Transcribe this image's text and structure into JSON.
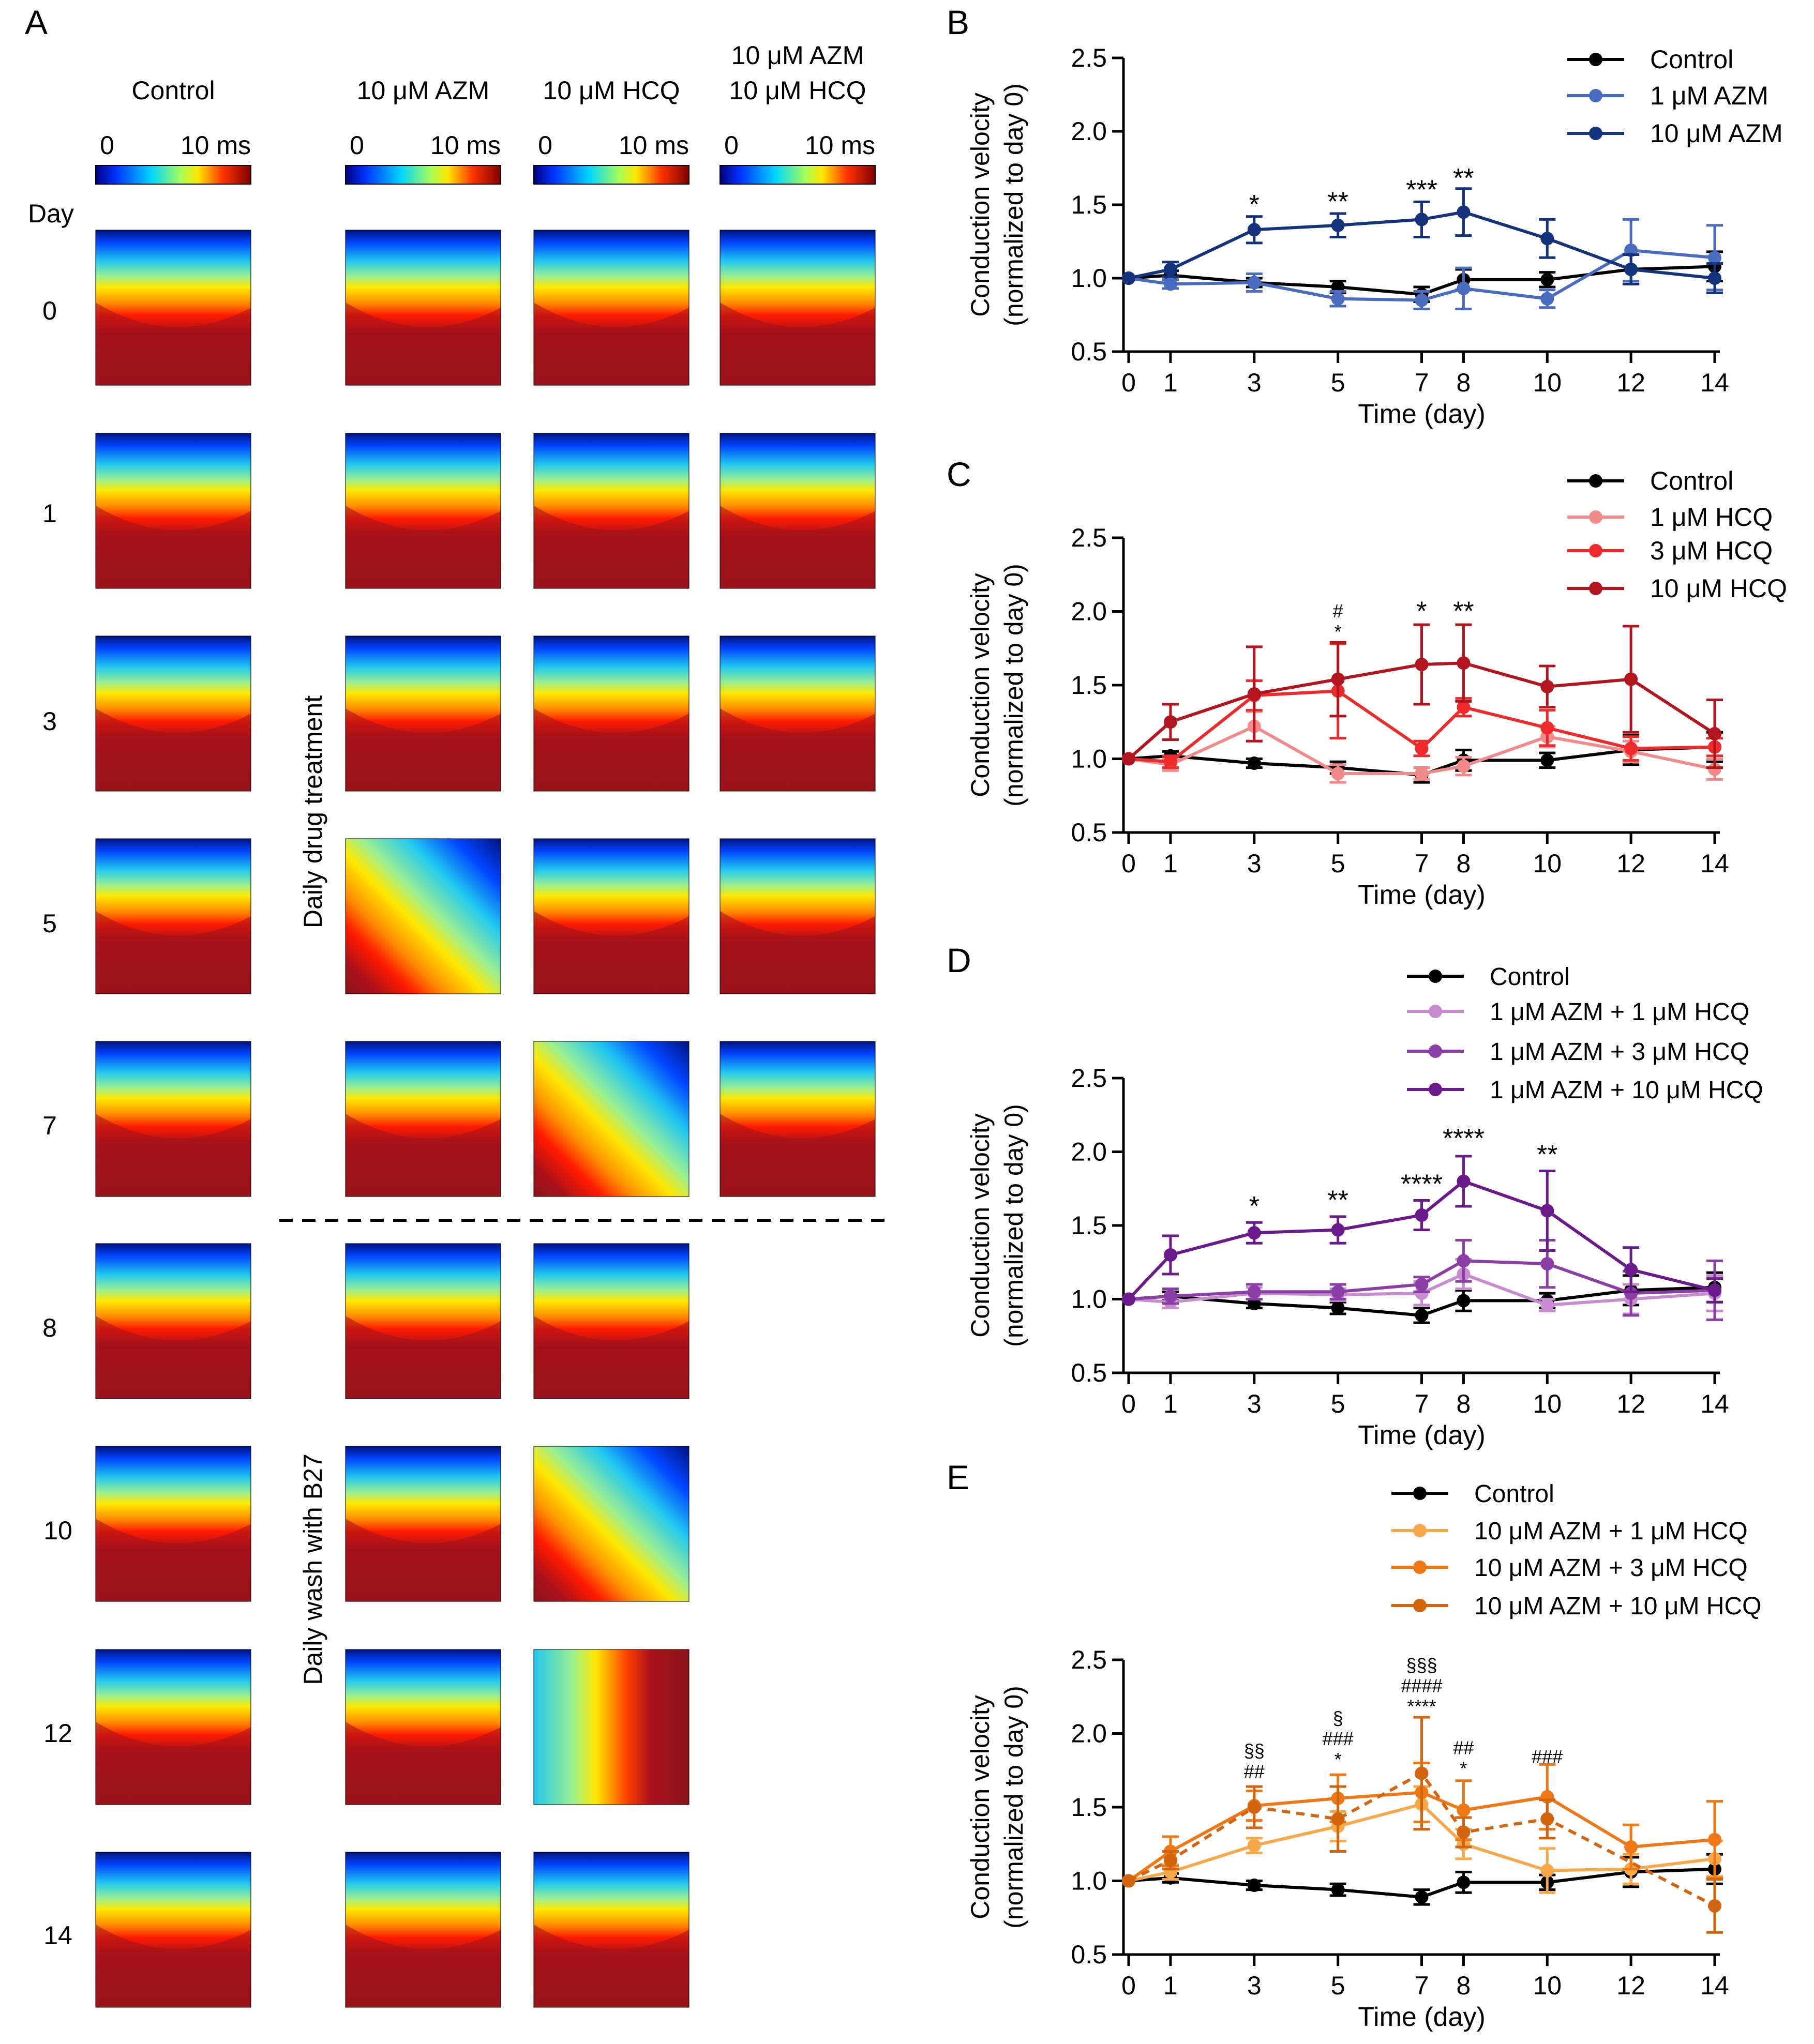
{
  "figure": {
    "panel_letters": [
      "A",
      "B",
      "C",
      "D",
      "E"
    ],
    "colorbar_min_label": "0",
    "colorbar_max_label": "10 ms",
    "day_header": "Day",
    "treatment_label": "Daily drug treatment",
    "wash_label": "Daily wash with B27"
  },
  "panel_a": {
    "columns": [
      {
        "key": "control",
        "label1": "Control",
        "label2": ""
      },
      {
        "key": "azm",
        "label1": "10 μM AZM",
        "label2": ""
      },
      {
        "key": "hcq",
        "label1": "10 μM HCQ",
        "label2": ""
      },
      {
        "key": "combo",
        "label1": "10 μM AZM",
        "label2": "10 μM HCQ"
      }
    ],
    "days": [
      "0",
      "1",
      "3",
      "5",
      "7",
      "8",
      "10",
      "12",
      "14"
    ]
  },
  "colors": {
    "control": "#000000",
    "azm1": "#4a6cc0",
    "azm10": "#13347d",
    "hcq1": "#f28a8a",
    "hcq3": "#ee2a2a",
    "hcq10": "#b3151f",
    "combo1_1": "#c78bd0",
    "combo1_3": "#8b3fa6",
    "combo1_10": "#6a1a8a",
    "combo10_1": "#f7a94a",
    "combo10_3": "#f07814",
    "combo10_10": "#d2650e"
  },
  "chart_data": [
    {
      "id": "B",
      "type": "line",
      "xlabel": "Time (day)",
      "ylabel": "Conduction velocity",
      "ylabel2": "(normalized to day 0)",
      "x": [
        0,
        1,
        3,
        5,
        7,
        8,
        10,
        12,
        14
      ],
      "xlim": [
        0,
        14
      ],
      "ylim": [
        0.5,
        2.5
      ],
      "yticks": [
        "0.5",
        "1.0",
        "1.5",
        "2.0",
        "2.5"
      ],
      "series": [
        {
          "name": "Control",
          "color_key": "control",
          "values": [
            1.0,
            1.02,
            0.97,
            0.94,
            0.89,
            0.99,
            0.99,
            1.06,
            1.08
          ],
          "errors": [
            0,
            0.03,
            0.03,
            0.04,
            0.05,
            0.07,
            0.05,
            0.1,
            0.1
          ]
        },
        {
          "name": "1 μM AZM",
          "color_key": "azm1",
          "values": [
            1.0,
            0.96,
            0.97,
            0.86,
            0.85,
            0.93,
            0.86,
            1.19,
            1.14
          ],
          "errors": [
            0,
            0.03,
            0.06,
            0.05,
            0.06,
            0.14,
            0.06,
            0.21,
            0.22
          ]
        },
        {
          "name": "10 μM AZM",
          "color_key": "azm10",
          "values": [
            1.0,
            1.06,
            1.33,
            1.36,
            1.4,
            1.45,
            1.27,
            1.06,
            1.0
          ],
          "errors": [
            0,
            0.05,
            0.09,
            0.08,
            0.12,
            0.16,
            0.13,
            0.1,
            0.1
          ]
        }
      ],
      "annotations": [
        {
          "x": 3,
          "lines": [
            "*"
          ],
          "y": 1.44
        },
        {
          "x": 5,
          "lines": [
            "**"
          ],
          "y": 1.46
        },
        {
          "x": 7,
          "lines": [
            "***"
          ],
          "y": 1.54
        },
        {
          "x": 8,
          "lines": [
            "**"
          ],
          "y": 1.62
        }
      ]
    },
    {
      "id": "C",
      "type": "line",
      "xlabel": "Time (day)",
      "ylabel": "Conduction velocity",
      "ylabel2": "(normalized to day 0)",
      "x": [
        0,
        1,
        3,
        5,
        7,
        8,
        10,
        12,
        14
      ],
      "xlim": [
        0,
        14
      ],
      "ylim": [
        0.5,
        2.5
      ],
      "yticks": [
        "0.5",
        "1.0",
        "1.5",
        "2.0",
        "2.5"
      ],
      "series": [
        {
          "name": "Control",
          "color_key": "control",
          "values": [
            1.0,
            1.02,
            0.97,
            0.94,
            0.89,
            0.99,
            0.99,
            1.06,
            1.08
          ],
          "errors": [
            0,
            0.03,
            0.03,
            0.04,
            0.05,
            0.07,
            0.05,
            0.1,
            0.1
          ]
        },
        {
          "name": "1 μM HCQ",
          "color_key": "hcq1",
          "values": [
            1.0,
            0.96,
            1.22,
            0.9,
            0.9,
            0.95,
            1.15,
            1.05,
            0.93
          ],
          "errors": [
            0,
            0.04,
            0.1,
            0.06,
            0.04,
            0.06,
            0.07,
            0.07,
            0.07
          ]
        },
        {
          "name": "3 μM HCQ",
          "color_key": "hcq3",
          "values": [
            1.0,
            0.98,
            1.43,
            1.46,
            1.07,
            1.35,
            1.21,
            1.07,
            1.08
          ],
          "errors": [
            0,
            0.04,
            0.1,
            0.32,
            0.05,
            0.06,
            0.12,
            0.08,
            0.06
          ]
        },
        {
          "name": "10 μM HCQ",
          "color_key": "hcq10",
          "values": [
            1.0,
            1.25,
            1.44,
            1.54,
            1.64,
            1.65,
            1.49,
            1.54,
            1.17
          ],
          "errors": [
            0,
            0.12,
            0.32,
            0.25,
            0.27,
            0.26,
            0.14,
            0.36,
            0.23
          ]
        }
      ],
      "annotations": [
        {
          "x": 5,
          "lines": [
            "#",
            "*"
          ],
          "y": 1.82
        },
        {
          "x": 7,
          "lines": [
            "*"
          ],
          "y": 1.94
        },
        {
          "x": 8,
          "lines": [
            "**"
          ],
          "y": 1.94
        }
      ]
    },
    {
      "id": "D",
      "type": "line",
      "xlabel": "Time (day)",
      "ylabel": "Conduction velocity",
      "ylabel2": "(normalized to day 0)",
      "x": [
        0,
        1,
        3,
        5,
        7,
        8,
        10,
        12,
        14
      ],
      "xlim": [
        0,
        14
      ],
      "ylim": [
        0.5,
        2.5
      ],
      "yticks": [
        "0.5",
        "1.0",
        "1.5",
        "2.0",
        "2.5"
      ],
      "series": [
        {
          "name": "Control",
          "color_key": "control",
          "values": [
            1.0,
            1.02,
            0.97,
            0.94,
            0.89,
            0.99,
            0.99,
            1.06,
            1.08
          ],
          "errors": [
            0,
            0.03,
            0.03,
            0.04,
            0.05,
            0.07,
            0.05,
            0.1,
            0.1
          ]
        },
        {
          "name": "1 μM AZM + 1 μM HCQ",
          "color_key": "combo1_1",
          "values": [
            1.0,
            0.98,
            1.04,
            1.03,
            1.04,
            1.17,
            0.96,
            1.0,
            1.04
          ],
          "errors": [
            0,
            0.04,
            0.04,
            0.04,
            0.08,
            0.1,
            0.04,
            0.1,
            0.12
          ]
        },
        {
          "name": "1 μM AZM + 3 μM HCQ",
          "color_key": "combo1_3",
          "values": [
            1.0,
            1.02,
            1.05,
            1.05,
            1.1,
            1.26,
            1.24,
            1.04,
            1.06
          ],
          "errors": [
            0,
            0.05,
            0.05,
            0.05,
            0.05,
            0.14,
            0.16,
            0.15,
            0.2
          ]
        },
        {
          "name": "1 μM AZM + 10 μM HCQ",
          "color_key": "combo1_10",
          "values": [
            1.0,
            1.3,
            1.45,
            1.47,
            1.57,
            1.8,
            1.6,
            1.2,
            1.06
          ],
          "errors": [
            0,
            0.13,
            0.07,
            0.09,
            0.1,
            0.17,
            0.27,
            0.15,
            0.08
          ]
        }
      ],
      "annotations": [
        {
          "x": 3,
          "lines": [
            "*"
          ],
          "y": 1.57
        },
        {
          "x": 5,
          "lines": [
            "**"
          ],
          "y": 1.61
        },
        {
          "x": 7,
          "lines": [
            "****"
          ],
          "y": 1.72
        },
        {
          "x": 8,
          "lines": [
            "****"
          ],
          "y": 2.03
        },
        {
          "x": 10,
          "lines": [
            "**"
          ],
          "y": 1.92
        }
      ]
    },
    {
      "id": "E",
      "type": "line",
      "xlabel": "Time (day)",
      "ylabel": "Conduction velocity",
      "ylabel2": "(normalized to day 0)",
      "x": [
        0,
        1,
        3,
        5,
        7,
        8,
        10,
        12,
        14
      ],
      "xlim": [
        0,
        14
      ],
      "ylim": [
        0.5,
        2.5
      ],
      "yticks": [
        "0.5",
        "1.0",
        "1.5",
        "2.0",
        "2.5"
      ],
      "series": [
        {
          "name": "Control",
          "color_key": "control",
          "values": [
            1.0,
            1.02,
            0.97,
            0.94,
            0.89,
            0.99,
            0.99,
            1.06,
            1.08
          ],
          "errors": [
            0,
            0.03,
            0.03,
            0.04,
            0.05,
            0.07,
            0.05,
            0.1,
            0.1
          ]
        },
        {
          "name": "10 μM AZM + 1 μM HCQ",
          "color_key": "combo10_1",
          "values": [
            1.0,
            1.06,
            1.24,
            1.37,
            1.52,
            1.25,
            1.07,
            1.08,
            1.15
          ],
          "errors": [
            0,
            0.05,
            0.05,
            0.1,
            0.12,
            0.1,
            0.15,
            0.1,
            0.12
          ]
        },
        {
          "name": "10 μM AZM + 3 μM HCQ",
          "color_key": "combo10_3",
          "values": [
            1.0,
            1.2,
            1.51,
            1.56,
            1.6,
            1.48,
            1.57,
            1.23,
            1.28
          ],
          "errors": [
            0,
            0.1,
            0.1,
            0.16,
            0.2,
            0.2,
            0.22,
            0.15,
            0.26
          ]
        },
        {
          "name": "10 μM AZM + 10 μM HCQ",
          "color_key": "combo10_10",
          "values": [
            1.0,
            1.14,
            1.5,
            1.42,
            1.73,
            1.33,
            1.42,
            null,
            0.83
          ],
          "errors": [
            0,
            0.06,
            0.14,
            0.22,
            0.38,
            0.1,
            0.13,
            0,
            0.18
          ]
        }
      ],
      "annotations": [
        {
          "x": 3,
          "lines": [
            "§§",
            "##"
          ],
          "y": 1.7
        },
        {
          "x": 5,
          "lines": [
            "§",
            "###",
            "*"
          ],
          "y": 1.78
        },
        {
          "x": 7,
          "lines": [
            "§§§",
            "####",
            "****"
          ],
          "y": 2.14
        },
        {
          "x": 8,
          "lines": [
            "##",
            "*"
          ],
          "y": 1.72
        },
        {
          "x": 10,
          "lines": [
            "###"
          ],
          "y": 1.8
        }
      ]
    }
  ]
}
